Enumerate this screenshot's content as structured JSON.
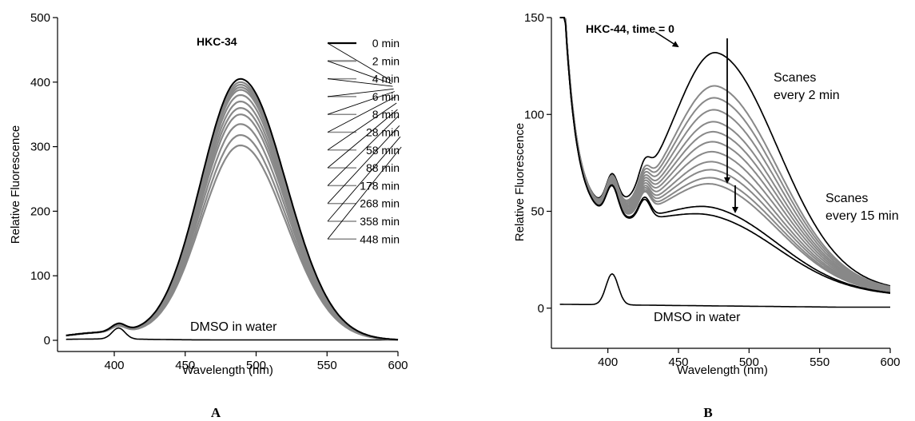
{
  "panels": [
    {
      "letter": "A"
    },
    {
      "letter": "B"
    }
  ],
  "chart_data": [
    {
      "type": "line",
      "title": "HKC-34",
      "xlabel": "Wavelength (nm)",
      "ylabel": "Relative Fluorescence",
      "xlim": [
        360,
        600
      ],
      "ylim": [
        0,
        500
      ],
      "xticks": [
        400,
        450,
        500,
        550,
        600
      ],
      "yticks": [
        0,
        100,
        200,
        300,
        400,
        500
      ],
      "grid": false,
      "series": [
        {
          "name": "0 min",
          "color": "#000000",
          "peak": 405
        },
        {
          "name": "2 min",
          "color": "#888888",
          "peak": 400
        },
        {
          "name": "4 min",
          "color": "#888888",
          "peak": 396
        },
        {
          "name": "6 min",
          "color": "#888888",
          "peak": 392
        },
        {
          "name": "8 min",
          "color": "#888888",
          "peak": 388
        },
        {
          "name": "28 min",
          "color": "#888888",
          "peak": 380
        },
        {
          "name": "58 min",
          "color": "#888888",
          "peak": 370
        },
        {
          "name": "88 min",
          "color": "#888888",
          "peak": 360
        },
        {
          "name": "178 min",
          "color": "#888888",
          "peak": 350
        },
        {
          "name": "268 min",
          "color": "#888888",
          "peak": 335
        },
        {
          "name": "358 min",
          "color": "#888888",
          "peak": 318
        },
        {
          "name": "448 min",
          "color": "#888888",
          "peak": 302
        }
      ],
      "baseline": {
        "name": "DMSO in water",
        "color": "#000000"
      },
      "annotations": [
        "DMSO in water"
      ]
    },
    {
      "type": "line",
      "title": "HKC-44, time = 0",
      "xlabel": "Wavelength (nm)",
      "ylabel": "Relative Fluorescence",
      "xlim": [
        360,
        600
      ],
      "ylim": [
        -10,
        150
      ],
      "xticks": [
        400,
        450,
        500,
        550,
        600
      ],
      "yticks": [
        0,
        50,
        100,
        150
      ],
      "grid": false,
      "series_peaks": [
        139,
        122,
        116,
        110,
        104,
        99,
        94,
        89,
        84,
        80,
        76,
        73,
        61,
        57
      ],
      "series_colors": [
        "#000000",
        "#888888",
        "#888888",
        "#888888",
        "#888888",
        "#888888",
        "#888888",
        "#888888",
        "#888888",
        "#888888",
        "#888888",
        "#888888",
        "#000000",
        "#000000"
      ],
      "baseline": {
        "name": "DMSO in water",
        "color": "#000000"
      },
      "annotations": [
        "Scanes",
        "every 2 min",
        "Scanes",
        "every 15 min",
        "DMSO in water"
      ]
    }
  ]
}
